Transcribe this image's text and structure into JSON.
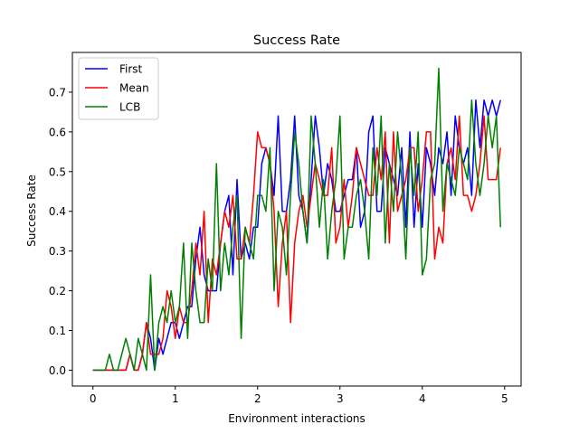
{
  "chart_data": {
    "type": "line",
    "title": "Success Rate",
    "xlabel": "Environment interactions",
    "ylabel": "Success Rate",
    "xlim": [
      -0.25,
      5.2
    ],
    "ylim": [
      -0.04,
      0.8
    ],
    "xticks": [
      0,
      1,
      2,
      3,
      4,
      5
    ],
    "yticks": [
      0.0,
      0.1,
      0.2,
      0.3,
      0.4,
      0.5,
      0.6,
      0.7
    ],
    "ytick_labels": [
      "0.0",
      "0.1",
      "0.2",
      "0.3",
      "0.4",
      "0.5",
      "0.6",
      "0.7"
    ],
    "legend_position": "top-left",
    "grid": false,
    "series": [
      {
        "name": "First",
        "color": "#0000ff",
        "x": [
          0,
          0.05,
          0.1,
          0.15,
          0.2,
          0.25,
          0.3,
          0.35,
          0.4,
          0.45,
          0.5,
          0.55,
          0.6,
          0.65,
          0.7,
          0.75,
          0.8,
          0.85,
          0.9,
          0.95,
          1.0,
          1.05,
          1.1,
          1.15,
          1.2,
          1.25,
          1.3,
          1.35,
          1.4,
          1.45,
          1.5,
          1.55,
          1.6,
          1.65,
          1.7,
          1.75,
          1.8,
          1.85,
          1.9,
          1.95,
          2.0,
          2.05,
          2.1,
          2.15,
          2.2,
          2.25,
          2.3,
          2.35,
          2.4,
          2.45,
          2.5,
          2.55,
          2.6,
          2.65,
          2.7,
          2.75,
          2.8,
          2.85,
          2.9,
          2.95,
          3.0,
          3.05,
          3.1,
          3.15,
          3.2,
          3.25,
          3.3,
          3.35,
          3.4,
          3.45,
          3.5,
          3.55,
          3.6,
          3.65,
          3.7,
          3.75,
          3.8,
          3.85,
          3.9,
          3.95,
          4.0,
          4.05,
          4.1,
          4.15,
          4.2,
          4.25,
          4.3,
          4.35,
          4.4,
          4.45,
          4.5,
          4.55,
          4.6,
          4.65,
          4.7,
          4.75,
          4.8,
          4.85,
          4.9,
          4.95
        ],
        "y": [
          0.0,
          0.0,
          0.0,
          0.0,
          0.0,
          0.0,
          0.0,
          0.0,
          0.0,
          0.04,
          0.0,
          0.0,
          0.04,
          0.12,
          0.08,
          0.0,
          0.08,
          0.04,
          0.08,
          0.12,
          0.12,
          0.08,
          0.12,
          0.16,
          0.16,
          0.28,
          0.36,
          0.24,
          0.2,
          0.2,
          0.2,
          0.32,
          0.4,
          0.44,
          0.24,
          0.48,
          0.28,
          0.32,
          0.28,
          0.36,
          0.36,
          0.52,
          0.56,
          0.52,
          0.44,
          0.64,
          0.4,
          0.4,
          0.48,
          0.64,
          0.44,
          0.4,
          0.32,
          0.48,
          0.64,
          0.56,
          0.44,
          0.52,
          0.48,
          0.4,
          0.4,
          0.44,
          0.48,
          0.48,
          0.56,
          0.36,
          0.4,
          0.6,
          0.64,
          0.4,
          0.4,
          0.56,
          0.52,
          0.48,
          0.44,
          0.56,
          0.36,
          0.6,
          0.36,
          0.52,
          0.36,
          0.56,
          0.52,
          0.44,
          0.56,
          0.52,
          0.6,
          0.44,
          0.64,
          0.56,
          0.52,
          0.56,
          0.44,
          0.68,
          0.56,
          0.68,
          0.64,
          0.68,
          0.64,
          0.68
        ]
      },
      {
        "name": "Mean",
        "color": "#ff0000",
        "x": [
          0,
          0.05,
          0.1,
          0.15,
          0.2,
          0.25,
          0.3,
          0.35,
          0.4,
          0.45,
          0.5,
          0.55,
          0.6,
          0.65,
          0.7,
          0.75,
          0.8,
          0.85,
          0.9,
          0.95,
          1.0,
          1.05,
          1.1,
          1.15,
          1.2,
          1.25,
          1.3,
          1.35,
          1.4,
          1.45,
          1.5,
          1.55,
          1.6,
          1.65,
          1.7,
          1.75,
          1.8,
          1.85,
          1.9,
          1.95,
          2.0,
          2.05,
          2.1,
          2.15,
          2.2,
          2.25,
          2.3,
          2.35,
          2.4,
          2.45,
          2.5,
          2.55,
          2.6,
          2.65,
          2.7,
          2.75,
          2.8,
          2.85,
          2.9,
          2.95,
          3.0,
          3.05,
          3.1,
          3.15,
          3.2,
          3.25,
          3.3,
          3.35,
          3.4,
          3.45,
          3.5,
          3.55,
          3.6,
          3.65,
          3.7,
          3.75,
          3.8,
          3.85,
          3.9,
          3.95,
          4.0,
          4.05,
          4.1,
          4.15,
          4.2,
          4.25,
          4.3,
          4.35,
          4.4,
          4.45,
          4.5,
          4.55,
          4.6,
          4.65,
          4.7,
          4.75,
          4.8,
          4.85,
          4.9,
          4.95
        ],
        "y": [
          0.0,
          0.0,
          0.0,
          0.0,
          0.0,
          0.0,
          0.0,
          0.0,
          0.0,
          0.04,
          0.0,
          0.0,
          0.04,
          0.12,
          0.04,
          0.04,
          0.04,
          0.08,
          0.2,
          0.16,
          0.08,
          0.16,
          0.12,
          0.12,
          0.2,
          0.32,
          0.24,
          0.4,
          0.12,
          0.28,
          0.24,
          0.32,
          0.4,
          0.36,
          0.44,
          0.28,
          0.28,
          0.36,
          0.32,
          0.44,
          0.6,
          0.56,
          0.56,
          0.52,
          0.4,
          0.16,
          0.32,
          0.4,
          0.12,
          0.32,
          0.4,
          0.44,
          0.36,
          0.44,
          0.52,
          0.48,
          0.44,
          0.44,
          0.56,
          0.32,
          0.36,
          0.48,
          0.36,
          0.44,
          0.56,
          0.52,
          0.48,
          0.44,
          0.44,
          0.56,
          0.48,
          0.6,
          0.32,
          0.6,
          0.4,
          0.44,
          0.48,
          0.56,
          0.56,
          0.4,
          0.48,
          0.6,
          0.6,
          0.28,
          0.36,
          0.32,
          0.52,
          0.56,
          0.48,
          0.64,
          0.44,
          0.44,
          0.4,
          0.44,
          0.52,
          0.64,
          0.48,
          0.48,
          0.48,
          0.56
        ]
      },
      {
        "name": "LCB",
        "color": "#008000",
        "x": [
          0,
          0.05,
          0.1,
          0.15,
          0.2,
          0.25,
          0.3,
          0.35,
          0.4,
          0.45,
          0.5,
          0.55,
          0.6,
          0.65,
          0.7,
          0.75,
          0.8,
          0.85,
          0.9,
          0.95,
          1.0,
          1.05,
          1.1,
          1.15,
          1.2,
          1.25,
          1.3,
          1.35,
          1.4,
          1.45,
          1.5,
          1.55,
          1.6,
          1.65,
          1.7,
          1.75,
          1.8,
          1.85,
          1.9,
          1.95,
          2.0,
          2.05,
          2.1,
          2.15,
          2.2,
          2.25,
          2.3,
          2.35,
          2.4,
          2.45,
          2.5,
          2.55,
          2.6,
          2.65,
          2.7,
          2.75,
          2.8,
          2.85,
          2.9,
          2.95,
          3.0,
          3.05,
          3.1,
          3.15,
          3.2,
          3.25,
          3.3,
          3.35,
          3.4,
          3.45,
          3.5,
          3.55,
          3.6,
          3.65,
          3.7,
          3.75,
          3.8,
          3.85,
          3.9,
          3.95,
          4.0,
          4.05,
          4.1,
          4.15,
          4.2,
          4.25,
          4.3,
          4.35,
          4.4,
          4.45,
          4.5,
          4.55,
          4.6,
          4.65,
          4.7,
          4.75,
          4.8,
          4.85,
          4.9,
          4.95
        ],
        "y": [
          0.0,
          0.0,
          0.0,
          0.0,
          0.04,
          0.0,
          0.0,
          0.04,
          0.08,
          0.04,
          0.0,
          0.08,
          0.04,
          0.0,
          0.24,
          0.0,
          0.12,
          0.16,
          0.12,
          0.2,
          0.12,
          0.16,
          0.32,
          0.08,
          0.32,
          0.2,
          0.12,
          0.12,
          0.28,
          0.2,
          0.52,
          0.2,
          0.32,
          0.24,
          0.36,
          0.44,
          0.08,
          0.36,
          0.32,
          0.28,
          0.44,
          0.44,
          0.4,
          0.56,
          0.2,
          0.4,
          0.36,
          0.24,
          0.44,
          0.6,
          0.52,
          0.4,
          0.32,
          0.64,
          0.52,
          0.36,
          0.48,
          0.28,
          0.4,
          0.48,
          0.64,
          0.28,
          0.36,
          0.36,
          0.44,
          0.48,
          0.4,
          0.28,
          0.56,
          0.44,
          0.64,
          0.32,
          0.52,
          0.4,
          0.6,
          0.48,
          0.28,
          0.56,
          0.44,
          0.6,
          0.24,
          0.28,
          0.48,
          0.52,
          0.76,
          0.4,
          0.52,
          0.48,
          0.44,
          0.56,
          0.52,
          0.48,
          0.68,
          0.52,
          0.44,
          0.52,
          0.64,
          0.56,
          0.64,
          0.36
        ]
      }
    ]
  }
}
